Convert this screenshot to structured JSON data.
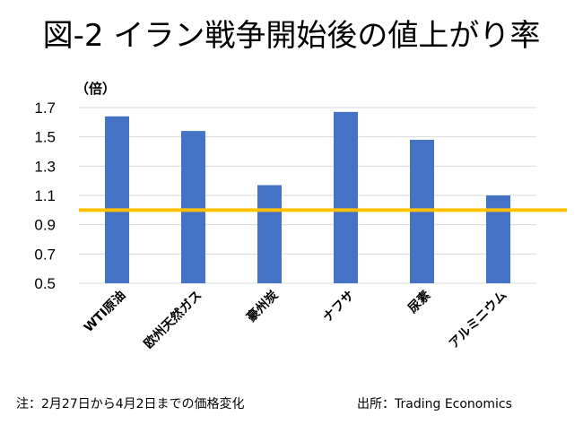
{
  "title": "図-2 イラン戦争開始後の値上がり率",
  "chart_data": {
    "type": "bar",
    "ylabel": "（倍）",
    "categories": [
      "WTI原油",
      "欧州天然ガス",
      "豪州炭",
      "ナフサ",
      "尿素",
      "アルミニウム"
    ],
    "values": [
      1.64,
      1.54,
      1.17,
      1.67,
      1.48,
      1.1
    ],
    "ylim": [
      0.5,
      1.7
    ],
    "yticks": [
      "0.5",
      "0.7",
      "0.9",
      "1.1",
      "1.3",
      "1.5",
      "1.7"
    ],
    "reference_line": 1.0,
    "grid": true,
    "colors": {
      "bar": "#4472C4",
      "reference": "#FFC000",
      "grid": "#D9D9D9"
    }
  },
  "footer": {
    "note": "注：2月27日から4月2日までの価格変化",
    "source": "出所：Trading Economics"
  }
}
